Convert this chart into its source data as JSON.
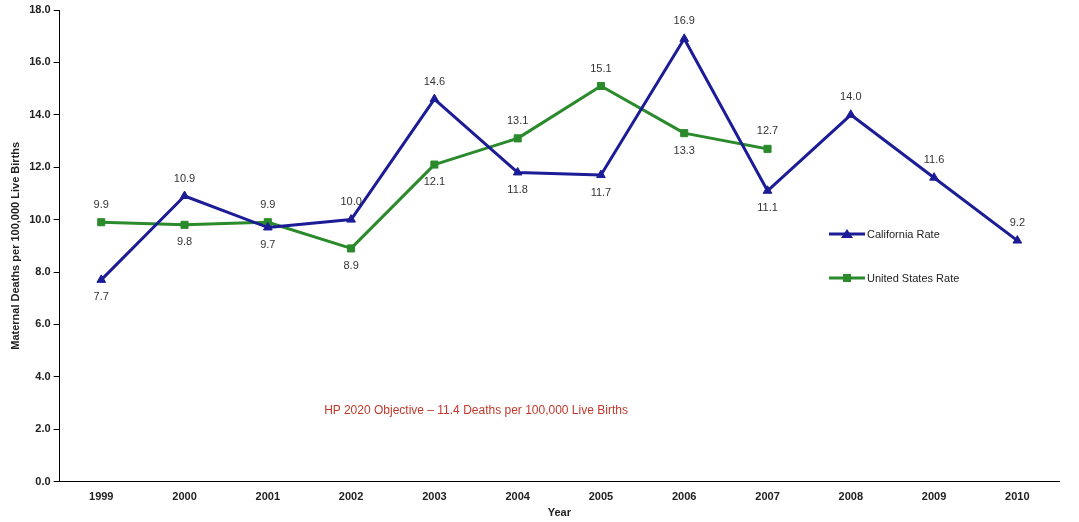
{
  "chart_data": {
    "type": "line",
    "xlabel": "Year",
    "ylabel": "Maternal Deaths per 100,000 Live Births",
    "categories": [
      "1999",
      "2000",
      "2001",
      "2002",
      "2003",
      "2004",
      "2005",
      "2006",
      "2007",
      "2008",
      "2009",
      "2010"
    ],
    "series": [
      {
        "name": "California Rate",
        "color": "#1c1c96",
        "marker": "triangle",
        "values": [
          7.7,
          10.9,
          9.7,
          10.0,
          14.6,
          11.8,
          11.7,
          16.9,
          11.1,
          14.0,
          11.6,
          9.2
        ],
        "value_labels": [
          "7.7",
          "10.9",
          "9.7",
          "10.0",
          "14.6",
          "11.8",
          "11.7",
          "16.9",
          "11.1",
          "14.0",
          "11.6",
          "9.2"
        ]
      },
      {
        "name": "United States Rate",
        "color": "#2b8a2b",
        "marker": "square",
        "values": [
          9.9,
          9.8,
          9.9,
          8.9,
          12.1,
          13.1,
          15.1,
          13.3,
          12.7,
          null,
          null,
          null
        ],
        "value_labels": [
          "9.9",
          "9.8",
          "9.9",
          "8.9",
          "12.1",
          "13.1",
          "15.1",
          "13.3",
          "12.7",
          null,
          null,
          null
        ]
      }
    ],
    "ylim": [
      0,
      18
    ],
    "yticks": [
      {
        "value": 0,
        "label": "0.0"
      },
      {
        "value": 2,
        "label": "2.0"
      },
      {
        "value": 4,
        "label": "4.0"
      },
      {
        "value": 6,
        "label": "6.0"
      },
      {
        "value": 8,
        "label": "8.0"
      },
      {
        "value": 10,
        "label": "10.0"
      },
      {
        "value": 12,
        "label": "12.0"
      },
      {
        "value": 14,
        "label": "14.0"
      },
      {
        "value": 16,
        "label": "16.0"
      },
      {
        "value": 18,
        "label": "18.0"
      }
    ],
    "grid": false,
    "legend": "right",
    "line_style": "solid",
    "annotations": [
      "HP 2020 Objective – 11.4 Deaths per 100,000 Live Births"
    ]
  }
}
